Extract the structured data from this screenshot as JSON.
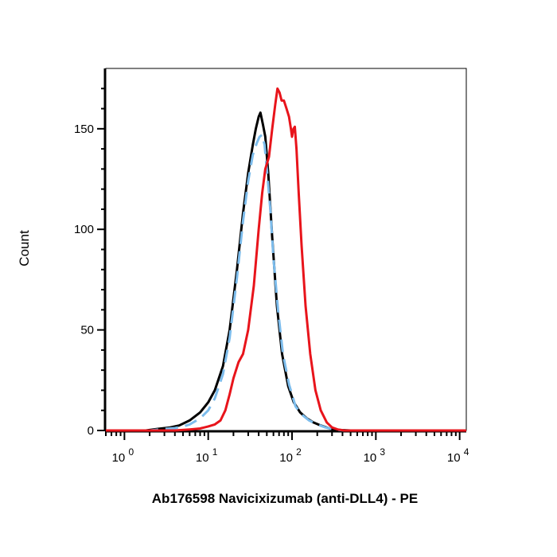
{
  "chart_data": {
    "type": "line",
    "title": "",
    "xlabel": "Ab176598 Navicixizumab (anti-DLL4) - PE",
    "ylabel": "Count",
    "x_scale": "log",
    "xlim": [
      0.6,
      12000
    ],
    "ylim": [
      0,
      180
    ],
    "grid": false,
    "legend": "none",
    "x_ticks": [
      {
        "value": 1,
        "base": "10",
        "exp": "0"
      },
      {
        "value": 10,
        "base": "10",
        "exp": "1"
      },
      {
        "value": 100,
        "base": "10",
        "exp": "2"
      },
      {
        "value": 1000,
        "base": "10",
        "exp": "3"
      },
      {
        "value": 10000,
        "base": "10",
        "exp": "4"
      }
    ],
    "y_ticks": [
      {
        "value": 0,
        "label": "0"
      },
      {
        "value": 50,
        "label": "50"
      },
      {
        "value": 100,
        "label": "100"
      },
      {
        "value": 150,
        "label": "150"
      }
    ],
    "series": [
      {
        "color": "#000000",
        "style": "solid",
        "points": [
          [
            0.6,
            0
          ],
          [
            1.8,
            0
          ],
          [
            2.5,
            0.8
          ],
          [
            3.5,
            1.5
          ],
          [
            4.5,
            2.5
          ],
          [
            6,
            5
          ],
          [
            8,
            9
          ],
          [
            10,
            14
          ],
          [
            12,
            20
          ],
          [
            15,
            32
          ],
          [
            18,
            50
          ],
          [
            22,
            80
          ],
          [
            26,
            108
          ],
          [
            30,
            128
          ],
          [
            34,
            142
          ],
          [
            37,
            150
          ],
          [
            40,
            156
          ],
          [
            42,
            158
          ],
          [
            45,
            152
          ],
          [
            48,
            146
          ],
          [
            52,
            128
          ],
          [
            58,
            96
          ],
          [
            66,
            62
          ],
          [
            76,
            38
          ],
          [
            90,
            22
          ],
          [
            105,
            14
          ],
          [
            125,
            9
          ],
          [
            150,
            6
          ],
          [
            180,
            4
          ],
          [
            220,
            2.5
          ],
          [
            280,
            1
          ],
          [
            350,
            0.3
          ],
          [
            500,
            0
          ],
          [
            12000,
            0
          ]
        ]
      },
      {
        "color": "#7cbcec",
        "style": "dashed",
        "points": [
          [
            0.6,
            0
          ],
          [
            2,
            0
          ],
          [
            3,
            0.8
          ],
          [
            4,
            1.2
          ],
          [
            5,
            2
          ],
          [
            6,
            3
          ],
          [
            8,
            6
          ],
          [
            10,
            10
          ],
          [
            12,
            16
          ],
          [
            15,
            28
          ],
          [
            18,
            46
          ],
          [
            22,
            76
          ],
          [
            26,
            104
          ],
          [
            30,
            124
          ],
          [
            34,
            137
          ],
          [
            38,
            143
          ],
          [
            41,
            146
          ],
          [
            44,
            147
          ],
          [
            47,
            142
          ],
          [
            50,
            130
          ],
          [
            55,
            110
          ],
          [
            60,
            86
          ],
          [
            68,
            60
          ],
          [
            78,
            38
          ],
          [
            92,
            23
          ],
          [
            110,
            12
          ],
          [
            130,
            8
          ],
          [
            160,
            5
          ],
          [
            200,
            3
          ],
          [
            250,
            1.5
          ],
          [
            320,
            0.5
          ],
          [
            420,
            0
          ],
          [
            12000,
            0
          ]
        ]
      },
      {
        "color": "#e8141b",
        "style": "solid",
        "points": [
          [
            0.6,
            0
          ],
          [
            4,
            0
          ],
          [
            6,
            0.5
          ],
          [
            8,
            1
          ],
          [
            10,
            2
          ],
          [
            12,
            3
          ],
          [
            14,
            5
          ],
          [
            16,
            10
          ],
          [
            18,
            18
          ],
          [
            20,
            26
          ],
          [
            23,
            34
          ],
          [
            26,
            38
          ],
          [
            30,
            50
          ],
          [
            35,
            72
          ],
          [
            40,
            100
          ],
          [
            44,
            118
          ],
          [
            48,
            130
          ],
          [
            53,
            136
          ],
          [
            58,
            150
          ],
          [
            63,
            162
          ],
          [
            67,
            170
          ],
          [
            71,
            168
          ],
          [
            75,
            164
          ],
          [
            80,
            164
          ],
          [
            86,
            160
          ],
          [
            92,
            156
          ],
          [
            97,
            150
          ],
          [
            100,
            146
          ],
          [
            104,
            150
          ],
          [
            108,
            151
          ],
          [
            113,
            140
          ],
          [
            120,
            118
          ],
          [
            130,
            92
          ],
          [
            145,
            62
          ],
          [
            165,
            38
          ],
          [
            190,
            20
          ],
          [
            220,
            10
          ],
          [
            260,
            4
          ],
          [
            300,
            1.5
          ],
          [
            350,
            0.5
          ],
          [
            420,
            0
          ],
          [
            12000,
            0
          ]
        ]
      }
    ]
  }
}
